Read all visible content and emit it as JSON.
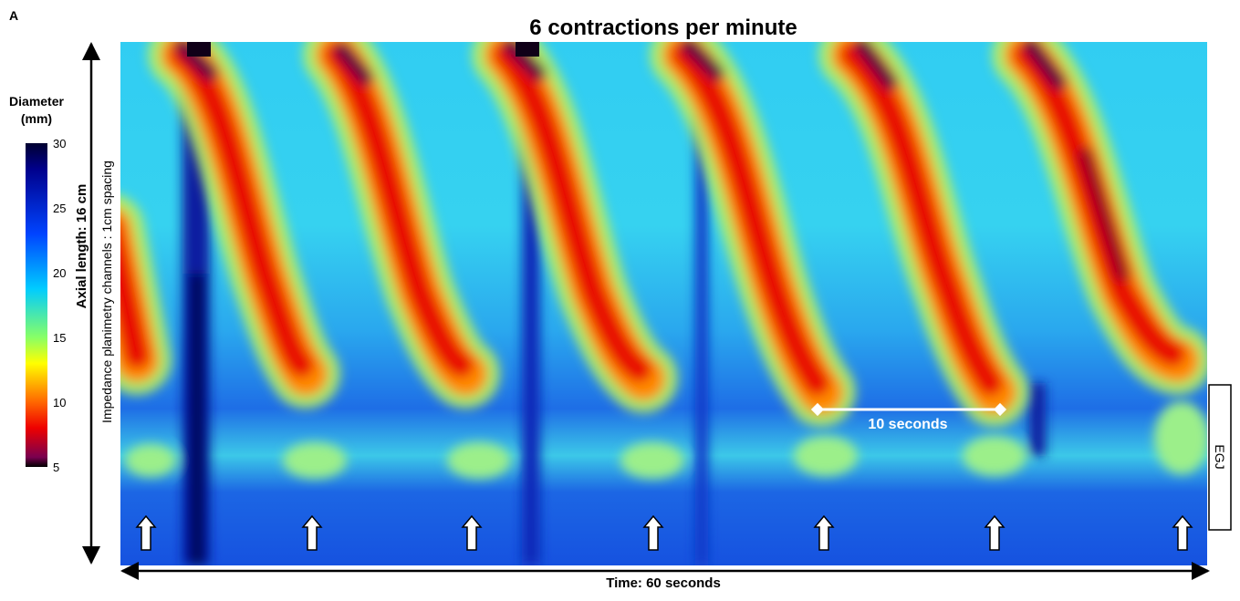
{
  "panel_label": "A",
  "title": "6 contractions per minute",
  "colorbar": {
    "title": [
      "Diameter",
      "(mm)"
    ],
    "ticks": [
      "30",
      "25",
      "20",
      "15",
      "10",
      "5"
    ]
  },
  "y_axis_label": "Axial length: 16 cm",
  "y_axis_sublabel": "Impedance planimetry channels : 1cm spacing",
  "x_axis_label": "Time:  60 seconds",
  "interval_label": "10  seconds",
  "region_label": "EGJ"
}
